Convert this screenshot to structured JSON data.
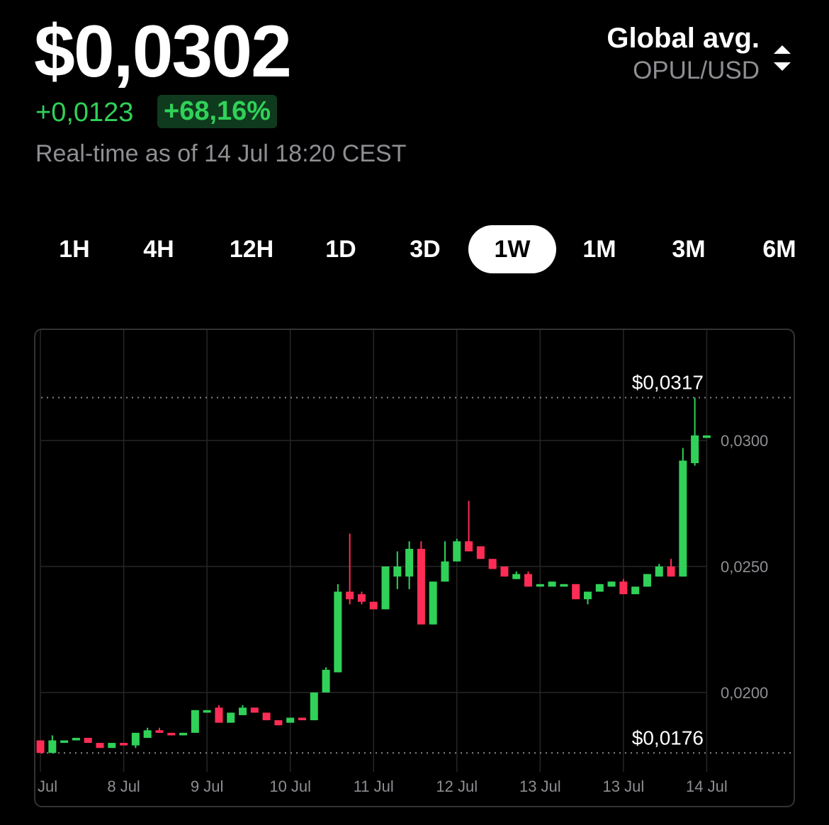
{
  "header": {
    "price": "$0,0302",
    "change": "+0,0123",
    "change_percent": "+68,16%",
    "timestamp": "Real-time as of 14 Jul 18:20 CEST",
    "source": "Global avg.",
    "pair": "OPUL/USD"
  },
  "tabs": {
    "items": [
      "1H",
      "4H",
      "12H",
      "1D",
      "3D",
      "1W",
      "1M",
      "3M",
      "6M"
    ],
    "active": 5
  },
  "chart_data": {
    "type": "candlestick",
    "series": [
      {
        "up_color": "#30d158",
        "down_color": "#ff2d55",
        "open": [
          0.0181,
          0.0176,
          0.018,
          0.0181,
          0.0182,
          0.018,
          0.0178,
          0.018,
          0.0179,
          0.0182,
          0.0185,
          0.0184,
          0.0183,
          0.0184,
          0.0192,
          0.0194,
          0.0188,
          0.0191,
          0.0194,
          0.0192,
          0.0189,
          0.0188,
          0.019,
          0.0189,
          0.02,
          0.0208,
          0.024,
          0.0239,
          0.0236,
          0.0233,
          0.0246,
          0.0246,
          0.0257,
          0.0227,
          0.0244,
          0.0252,
          0.026,
          0.0258,
          0.0253,
          0.025,
          0.0245,
          0.0247,
          0.0242,
          0.0242,
          0.0242,
          0.0243,
          0.0237,
          0.024,
          0.0242,
          0.0244,
          0.0239,
          0.0242,
          0.0246,
          0.025,
          0.0246,
          0.0291,
          0.0301
        ],
        "high": [
          0.0181,
          0.0183,
          0.0181,
          0.0182,
          0.0182,
          0.018,
          0.018,
          0.018,
          0.0184,
          0.0186,
          0.0186,
          0.0184,
          0.0184,
          0.0193,
          0.0193,
          0.0195,
          0.0192,
          0.0195,
          0.0194,
          0.0192,
          0.0189,
          0.019,
          0.019,
          0.02,
          0.021,
          0.0243,
          0.0263,
          0.024,
          0.0236,
          0.025,
          0.0256,
          0.026,
          0.026,
          0.0244,
          0.026,
          0.0261,
          0.0276,
          0.0258,
          0.0253,
          0.025,
          0.0248,
          0.0248,
          0.0243,
          0.0244,
          0.0243,
          0.0243,
          0.024,
          0.0243,
          0.0244,
          0.0245,
          0.0242,
          0.0247,
          0.0251,
          0.0253,
          0.0297,
          0.0317,
          0.0302
        ],
        "low": [
          0.0176,
          0.0176,
          0.018,
          0.0181,
          0.018,
          0.0178,
          0.0178,
          0.0179,
          0.0178,
          0.0182,
          0.0184,
          0.0183,
          0.0183,
          0.0184,
          0.0192,
          0.0188,
          0.0188,
          0.0191,
          0.0192,
          0.0189,
          0.0187,
          0.0188,
          0.0189,
          0.0189,
          0.02,
          0.0208,
          0.0235,
          0.0235,
          0.0233,
          0.0233,
          0.0241,
          0.0241,
          0.0227,
          0.0227,
          0.0244,
          0.0252,
          0.0256,
          0.0253,
          0.0249,
          0.0246,
          0.0245,
          0.0242,
          0.0242,
          0.0242,
          0.0242,
          0.0237,
          0.0235,
          0.024,
          0.0242,
          0.0239,
          0.0239,
          0.0242,
          0.0246,
          0.0246,
          0.0246,
          0.029,
          0.0301
        ],
        "close": [
          0.0176,
          0.0181,
          0.0181,
          0.0182,
          0.018,
          0.0178,
          0.018,
          0.0179,
          0.0184,
          0.0185,
          0.0184,
          0.0183,
          0.0184,
          0.0193,
          0.0193,
          0.0188,
          0.0192,
          0.0194,
          0.0192,
          0.0189,
          0.0187,
          0.019,
          0.0189,
          0.02,
          0.0209,
          0.024,
          0.0237,
          0.0236,
          0.0233,
          0.025,
          0.025,
          0.0257,
          0.0227,
          0.0244,
          0.0252,
          0.026,
          0.0256,
          0.0253,
          0.0249,
          0.0246,
          0.0247,
          0.0242,
          0.0243,
          0.0244,
          0.0243,
          0.0237,
          0.024,
          0.0243,
          0.0244,
          0.0239,
          0.0242,
          0.0247,
          0.025,
          0.0246,
          0.0292,
          0.0302,
          0.0302
        ]
      }
    ],
    "xlim": [
      -0.42,
      63.3
    ],
    "xticks": [
      {
        "value": 0,
        "label": "Jul"
      },
      {
        "value": 7,
        "label": "8 Jul"
      },
      {
        "value": 14,
        "label": "9 Jul"
      },
      {
        "value": 21,
        "label": "10 Jul"
      },
      {
        "value": 28,
        "label": "11 Jul"
      },
      {
        "value": 35,
        "label": "12 Jul"
      },
      {
        "value": 42,
        "label": "13 Jul"
      },
      {
        "value": 49,
        "label": "13 Jul"
      },
      {
        "value": 56,
        "label": "14 Jul"
      }
    ],
    "ylim": [
      0.01685,
      0.03427
    ],
    "yticks": [
      {
        "value": 0.02,
        "label": "0,0200"
      },
      {
        "value": 0.025,
        "label": "0,0250"
      },
      {
        "value": 0.03,
        "label": "0,0300"
      }
    ],
    "annotations": [
      {
        "value": 0.0317,
        "label": "$0,0317"
      },
      {
        "value": 0.0176,
        "label": "$0,0176"
      }
    ],
    "grid": true
  }
}
